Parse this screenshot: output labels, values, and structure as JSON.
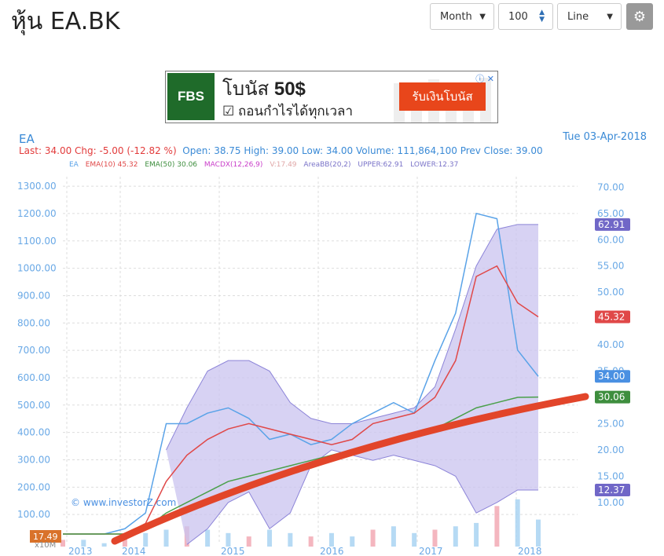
{
  "page_title": "หุ้น EA.BK",
  "controls": {
    "period": "Month",
    "count": "100",
    "chart_kind": "Line",
    "settings_icon": "gear-icon"
  },
  "ad": {
    "logo": "FBS",
    "headline_pre": "โบนัส",
    "headline_bold": "50$",
    "sub": "☑ ถอนกำไรได้ทุกเวลา",
    "cta": "รับเงินโบนัส",
    "close": "ⓘ ✕"
  },
  "quote": {
    "symbol": "EA",
    "date": "Tue 03-Apr-2018",
    "last": "Last: 34.00",
    "chg": "Chg: -5.00 (-12.82 %)",
    "open": "Open: 38.75",
    "high": "High: 39.00",
    "low": "Low: 34.00",
    "volume": "Volume: 111,864,100",
    "prev_close": "Prev Close: 39.00"
  },
  "legend": {
    "ea": "EA",
    "ema10": "EMA(10)  45.32",
    "ema50": "EMA(50)  30.06",
    "macd": "MACDX(12,26,9)",
    "v": "V:17.49",
    "bb": "AreaBB(20,2)",
    "upper": "UPPER:62.91",
    "lower": "LOWER:12.37"
  },
  "watermark": "© www.investorZ.com",
  "volume_unit": "x10M",
  "colors": {
    "price": "#5aa3e8",
    "ema10": "#e04848",
    "ema50": "#4aa04a",
    "band": "#c9c3ef",
    "band_edge": "#8c84d8",
    "trend": "#e2452a"
  },
  "chart_data": {
    "type": "line",
    "x": [
      "2013-01",
      "2013-04",
      "2013-07",
      "2013-10",
      "2014-01",
      "2014-04",
      "2014-07",
      "2014-10",
      "2015-01",
      "2015-04",
      "2015-07",
      "2015-10",
      "2016-01",
      "2016-04",
      "2016-07",
      "2016-10",
      "2017-01",
      "2017-04",
      "2017-07",
      "2017-10",
      "2018-01",
      "2018-02",
      "2018-03",
      "2018-04"
    ],
    "x_ticks": [
      "2013",
      "2014",
      "2015",
      "2016",
      "2017",
      "2018"
    ],
    "left_axis": {
      "ticks": [
        100,
        200,
        300,
        400,
        500,
        600,
        700,
        800,
        900,
        1000,
        1100,
        1200,
        1300
      ],
      "labels": [
        "100.00",
        "200.00",
        "300.00",
        "400.00",
        "500.00",
        "600.00",
        "700.00",
        "800.00",
        "900.00",
        "1000.00",
        "1100.00",
        "1200.00",
        "1300.00"
      ]
    },
    "right_axis": {
      "ylim": [
        2.5,
        72
      ],
      "ticks": [
        10,
        15,
        20,
        25,
        30,
        35,
        40,
        45,
        50,
        55,
        60,
        65,
        70
      ],
      "labels": [
        "10.00",
        "15.00",
        "20.00",
        "25.00",
        "30.00",
        "35.00",
        "40.00",
        "45.00",
        "50.00",
        "55.00",
        "60.00",
        "65.00",
        "70.00"
      ]
    },
    "series": [
      {
        "name": "EA",
        "values": [
          4,
          4,
          4,
          5,
          8,
          25,
          25,
          27,
          28,
          26,
          22,
          23,
          21,
          22,
          25,
          27,
          29,
          27,
          37,
          46,
          65,
          64,
          39,
          34
        ]
      },
      {
        "name": "EMA(10)",
        "values": [
          4,
          4,
          4,
          4,
          6,
          14,
          19,
          22,
          24,
          25,
          24,
          23,
          22,
          21,
          22,
          25,
          26,
          27,
          30,
          37,
          53,
          55,
          48,
          45.32
        ]
      },
      {
        "name": "EMA(50)",
        "values": [
          4,
          4,
          4,
          4,
          5,
          8,
          10,
          12,
          14,
          15,
          16,
          17,
          18,
          19,
          20,
          21,
          22,
          23,
          24,
          26,
          28,
          29,
          30,
          30.06
        ]
      },
      {
        "name": "UPPER",
        "values": [
          null,
          null,
          null,
          null,
          null,
          20,
          28,
          35,
          37,
          37,
          35,
          29,
          26,
          25,
          25,
          26,
          27,
          28,
          32,
          43,
          55,
          62,
          62.91,
          62.91
        ]
      },
      {
        "name": "LOWER",
        "values": [
          null,
          null,
          null,
          null,
          null,
          null,
          2,
          5,
          10,
          12,
          5,
          8,
          17,
          20,
          19,
          18,
          19,
          18,
          17,
          15,
          8,
          10,
          12.37,
          12.37
        ]
      }
    ],
    "volume": [
      2,
      2,
      1,
      3,
      4,
      5,
      6,
      5,
      4,
      3,
      5,
      4,
      3,
      4,
      3,
      5,
      6,
      4,
      5,
      6,
      7,
      12,
      14,
      8
    ],
    "price_labels": [
      {
        "text": "62.91",
        "value": 62.91,
        "color": "#7067c7"
      },
      {
        "text": "45.32",
        "value": 45.32,
        "color": "#e04848"
      },
      {
        "text": "34.00",
        "value": 34.0,
        "color": "#4a90e2"
      },
      {
        "text": "30.06",
        "value": 30.06,
        "color": "#3e8e3e"
      },
      {
        "text": "12.37",
        "value": 12.37,
        "color": "#7067c7"
      }
    ],
    "left_price_label": "17.49"
  }
}
